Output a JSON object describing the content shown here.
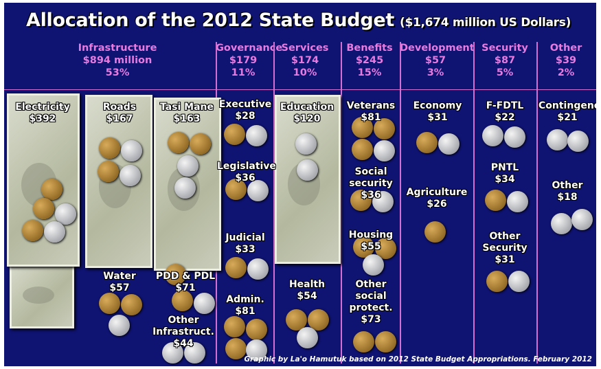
{
  "title": "Allocation of the 2012 State Budget",
  "subtitle": "($1,674 million US Dollars)",
  "categories": [
    {
      "name": "Infrastructure",
      "amount": "$894 million",
      "percent": "53%"
    },
    {
      "name": "Governance",
      "amount": "$179",
      "percent": "11%"
    },
    {
      "name": "Services",
      "amount": "$174",
      "percent": "10%"
    },
    {
      "name": "Benefits",
      "amount": "$245",
      "percent": "15%"
    },
    {
      "name": "Development",
      "amount": "$57",
      "percent": "3%"
    },
    {
      "name": "Security",
      "amount": "$87",
      "percent": "5%"
    },
    {
      "name": "Other",
      "amount": "$39",
      "percent": "2%"
    }
  ],
  "items": {
    "electricity": {
      "name": "Electricity",
      "amount": "$392"
    },
    "roads": {
      "name": "Roads",
      "amount": "$167"
    },
    "tasi_mane": {
      "name": "Tasi Mane",
      "amount": "$163"
    },
    "water": {
      "name": "Water",
      "amount": "$57"
    },
    "pdd_pdl": {
      "name": "PDD & PDL",
      "amount": "$71"
    },
    "other_infra": {
      "name": "Other Infrastruct.",
      "amount": "$44"
    },
    "executive": {
      "name": "Executive",
      "amount": "$28"
    },
    "legislative": {
      "name": "Legislative",
      "amount": "$36"
    },
    "judicial": {
      "name": "Judicial",
      "amount": "$33"
    },
    "admin": {
      "name": "Admin.",
      "amount": "$81"
    },
    "education": {
      "name": "Education",
      "amount": "$120"
    },
    "health": {
      "name": "Health",
      "amount": "$54"
    },
    "veterans": {
      "name": "Veterans",
      "amount": "$81"
    },
    "social_security": {
      "name": "Social security",
      "amount": "$36"
    },
    "housing": {
      "name": "Housing",
      "amount": "$55"
    },
    "other_social": {
      "name": "Other social protect.",
      "amount": "$73"
    },
    "economy": {
      "name": "Economy",
      "amount": "$31"
    },
    "agriculture": {
      "name": "Agriculture",
      "amount": "$26"
    },
    "ffdtl": {
      "name": "F-FDTL",
      "amount": "$22"
    },
    "pntl": {
      "name": "PNTL",
      "amount": "$34"
    },
    "other_security": {
      "name": "Other Security",
      "amount": "$31"
    },
    "contingency": {
      "name": "Contingency",
      "amount": "$21"
    },
    "other": {
      "name": "Other",
      "amount": "$18"
    }
  },
  "credit": "Graphic by La'o Hamutuk based on 2012 State Budget Appropriations.  February 2012",
  "colors": {
    "background": "#0f1372",
    "header": "#e77be0",
    "lines": "#d66fd2"
  }
}
